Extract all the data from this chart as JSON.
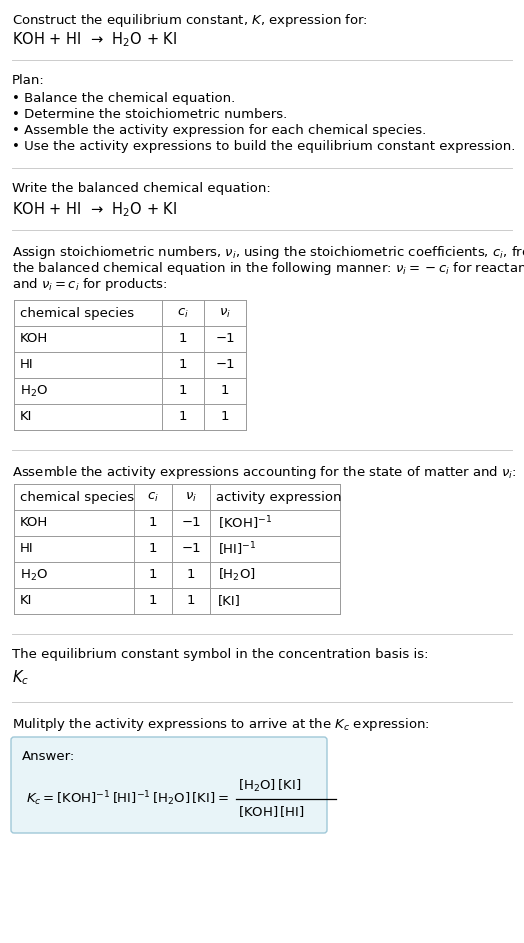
{
  "title_line1": "Construct the equilibrium constant, $K$, expression for:",
  "title_line2": "KOH + HI  →  H$_2$O + KI",
  "separator_color": "#cccccc",
  "bg_color": "#ffffff",
  "plan_header": "Plan:",
  "plan_bullets": [
    "• Balance the chemical equation.",
    "• Determine the stoichiometric numbers.",
    "• Assemble the activity expression for each chemical species.",
    "• Use the activity expressions to build the equilibrium constant expression."
  ],
  "balanced_eq_header": "Write the balanced chemical equation:",
  "balanced_eq": "KOH + HI  →  H$_2$O + KI",
  "stoich_intro_lines": [
    "Assign stoichiometric numbers, $\\nu_i$, using the stoichiometric coefficients, $c_i$, from",
    "the balanced chemical equation in the following manner: $\\nu_i = -c_i$ for reactants",
    "and $\\nu_i = c_i$ for products:"
  ],
  "table1_headers": [
    "chemical species",
    "$c_i$",
    "$\\nu_i$"
  ],
  "table1_rows": [
    [
      "KOH",
      "1",
      "−1"
    ],
    [
      "HI",
      "1",
      "−1"
    ],
    [
      "H$_2$O",
      "1",
      "1"
    ],
    [
      "KI",
      "1",
      "1"
    ]
  ],
  "activity_intro": "Assemble the activity expressions accounting for the state of matter and $\\nu_i$:",
  "table2_headers": [
    "chemical species",
    "$c_i$",
    "$\\nu_i$",
    "activity expression"
  ],
  "table2_rows": [
    [
      "KOH",
      "1",
      "−1",
      "[KOH]$^{-1}$"
    ],
    [
      "HI",
      "1",
      "−1",
      "[HI]$^{-1}$"
    ],
    [
      "H$_2$O",
      "1",
      "1",
      "[H$_2$O]"
    ],
    [
      "KI",
      "1",
      "1",
      "[KI]"
    ]
  ],
  "kc_intro": "The equilibrium constant symbol in the concentration basis is:",
  "kc_symbol": "$K_c$",
  "multiply_intro": "Mulitply the activity expressions to arrive at the $K_c$ expression:",
  "answer_box_color": "#e8f4f8",
  "answer_box_border": "#a0c8d8",
  "answer_label": "Answer:",
  "font_size": 9.5,
  "font_size_eq": 10.5
}
